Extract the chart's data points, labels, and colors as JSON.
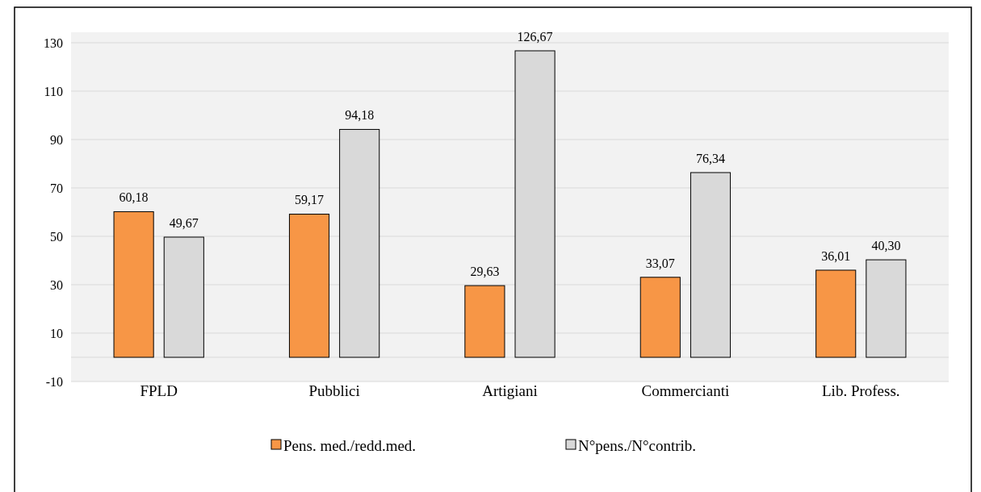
{
  "chart_data": {
    "type": "bar",
    "categories": [
      "FPLD",
      "Pubblici",
      "Artigiani",
      "Commercianti",
      "Lib. Profess."
    ],
    "series": [
      {
        "name": "Pens. med./redd.med.",
        "color": "#f79646",
        "values": [
          60.18,
          59.17,
          29.63,
          33.07,
          36.01
        ],
        "value_labels": [
          "60,18",
          "59,17",
          "29,63",
          "33,07",
          "36,01"
        ]
      },
      {
        "name": "N°pens./N°contrib.",
        "color": "#d9d9d9",
        "values": [
          49.67,
          94.18,
          126.67,
          76.34,
          40.3
        ],
        "value_labels": [
          "49,67",
          "94,18",
          "126,67",
          "76,34",
          "40,30"
        ]
      }
    ],
    "ylim": [
      -10,
      130
    ],
    "yticks": [
      -10,
      10,
      30,
      50,
      70,
      90,
      110,
      130
    ],
    "grid": "y",
    "legend": "bottom"
  }
}
